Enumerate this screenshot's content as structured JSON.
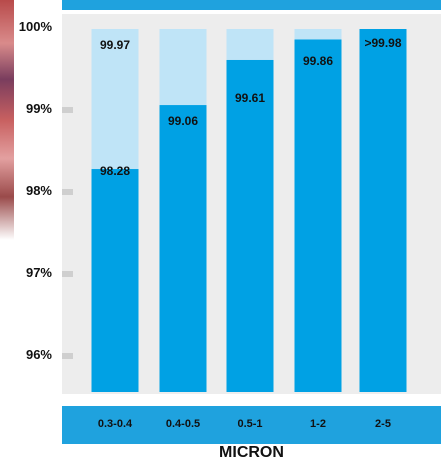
{
  "chart_data": {
    "type": "bar",
    "categories": [
      "0.3-0.4",
      "0.4-0.5",
      "0.5-1",
      "1-2",
      "2-5"
    ],
    "series": [
      {
        "values": [
          99.97,
          null,
          null,
          99.86,
          null
        ]
      },
      {
        "values": [
          98.28,
          99.06,
          99.61,
          99.86,
          99.98
        ]
      }
    ],
    "data_labels": [
      {
        "category": "0.3-0.4",
        "labels": [
          "99.97",
          "98.28"
        ]
      },
      {
        "category": "0.4-0.5",
        "labels": [
          "99.06"
        ]
      },
      {
        "category": "0.5-1",
        "labels": [
          "99.61"
        ]
      },
      {
        "category": "1-2",
        "labels": [
          "99.86"
        ]
      },
      {
        "category": "2-5",
        "labels": [
          ">99.98"
        ]
      }
    ],
    "yticks": [
      "100%",
      "99%",
      "98%",
      "97%",
      "96%"
    ],
    "ylim": [
      95.6,
      100
    ],
    "xlabel": "MICRON",
    "ylabel": "",
    "title": "",
    "grid": false,
    "colors": {
      "dark": "#00a1e4",
      "light": "#bfe4f7",
      "band": "#1fa2de",
      "plot_bg": "#ededed"
    }
  }
}
